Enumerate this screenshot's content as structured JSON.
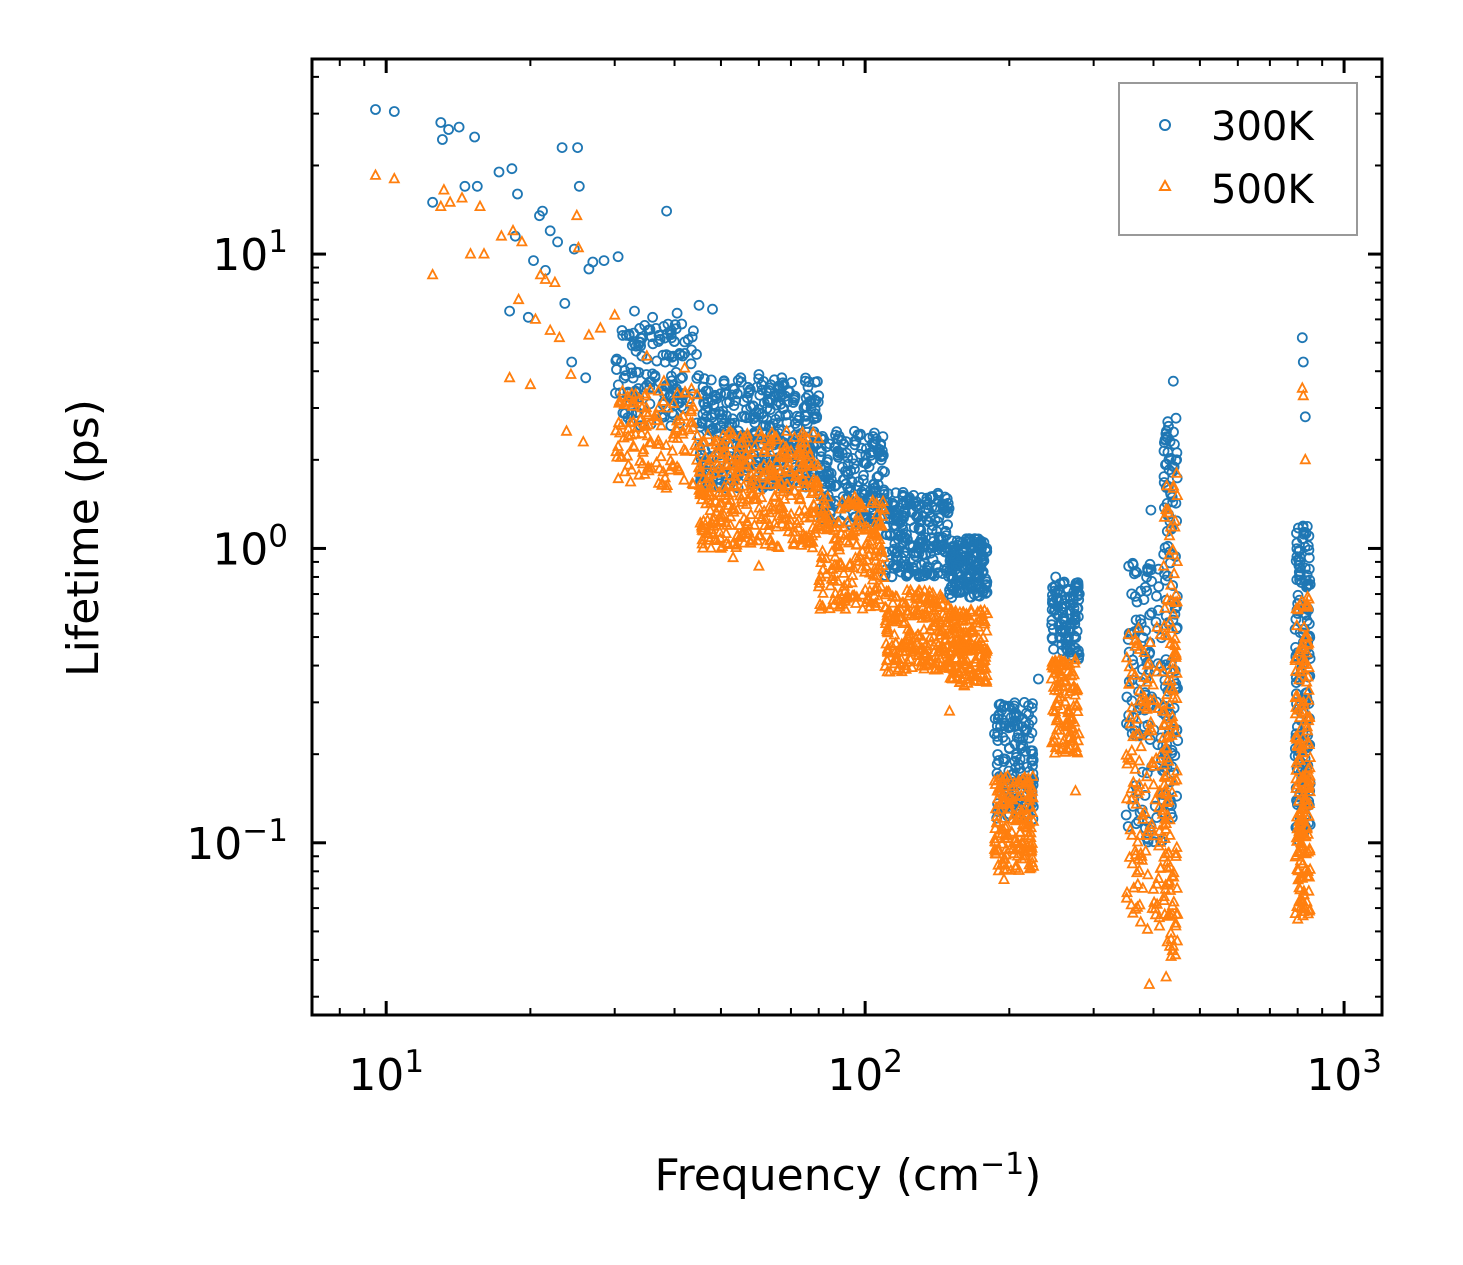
{
  "chart_data": {
    "type": "scatter",
    "title": "",
    "xlabel": "Frequency (cm",
    "xlabel_sup": "−1",
    "xlabel_end": ")",
    "ylabel": "Lifetime (ps)",
    "xscale": "log",
    "yscale": "log",
    "xlim": [
      7.0,
      1200
    ],
    "ylim": [
      0.026,
      46
    ],
    "x_ticks": [
      {
        "value": 10,
        "base": "10",
        "exp": "1"
      },
      {
        "value": 100,
        "base": "10",
        "exp": "2"
      },
      {
        "value": 1000,
        "base": "10",
        "exp": "3"
      }
    ],
    "y_ticks": [
      {
        "value": 0.1,
        "base": "10",
        "exp": "−1"
      },
      {
        "value": 1,
        "base": "10",
        "exp": "0"
      },
      {
        "value": 10,
        "base": "10",
        "exp": "1"
      }
    ],
    "legend_position": "top-right",
    "series": [
      {
        "name": "300K",
        "marker": "circle",
        "color": "#1f77b4",
        "points": [
          [
            9.5,
            31
          ],
          [
            10.4,
            30.5
          ],
          [
            12.5,
            15
          ],
          [
            13,
            28
          ],
          [
            13.1,
            24.5
          ],
          [
            13.5,
            26.5
          ],
          [
            14.2,
            27
          ],
          [
            14.6,
            17
          ],
          [
            15.3,
            25
          ],
          [
            15.5,
            17
          ],
          [
            17.2,
            19
          ],
          [
            18.1,
            6.4
          ],
          [
            18.3,
            19.5
          ],
          [
            18.6,
            11.5
          ],
          [
            18.8,
            16
          ],
          [
            19.8,
            6.1
          ],
          [
            20.3,
            9.5
          ],
          [
            20.9,
            13.5
          ],
          [
            21.2,
            14
          ],
          [
            21.5,
            8.8
          ],
          [
            22,
            12
          ],
          [
            22.8,
            11
          ],
          [
            23.3,
            23
          ],
          [
            23.6,
            6.8
          ],
          [
            24.4,
            4.3
          ],
          [
            24.7,
            10.4
          ],
          [
            25.1,
            23
          ],
          [
            25.3,
            17
          ],
          [
            26.1,
            3.8
          ],
          [
            26.5,
            8.9
          ],
          [
            27,
            9.4
          ],
          [
            28.5,
            9.5
          ],
          [
            30.5,
            9.8
          ],
          [
            31,
            4.3
          ],
          [
            32,
            3.4
          ],
          [
            33,
            6.4
          ],
          [
            35,
            4.4
          ],
          [
            36,
            6.1
          ],
          [
            38.5,
            14
          ],
          [
            39.4,
            5.5
          ],
          [
            40.5,
            6.3
          ],
          [
            42,
            4.6
          ],
          [
            45,
            6.7
          ],
          [
            48,
            6.5
          ],
          [
            55,
            3.8
          ],
          [
            60,
            3.9
          ],
          [
            67,
            3.8
          ],
          [
            75,
            3.7
          ],
          [
            80,
            3.3
          ],
          [
            95,
            2.5
          ],
          [
            105,
            2.3
          ],
          [
            120,
            1.55
          ],
          [
            140,
            1.25
          ],
          [
            160,
            1.05
          ],
          [
            175,
            1.0
          ],
          [
            190,
            0.27
          ],
          [
            200,
            0.21
          ],
          [
            215,
            0.3
          ],
          [
            230,
            0.36
          ],
          [
            250,
            0.8
          ],
          [
            265,
            0.72
          ],
          [
            280,
            0.7
          ],
          [
            355,
            0.87
          ],
          [
            365,
            0.82
          ],
          [
            395,
            1.35
          ],
          [
            410,
            0.85
          ],
          [
            415,
            0.4
          ],
          [
            430,
            2.6
          ],
          [
            440,
            3.7
          ],
          [
            447,
            2.0
          ],
          [
            800,
            0.65
          ],
          [
            810,
            0.9
          ],
          [
            818,
            5.2
          ],
          [
            822,
            4.3
          ],
          [
            830,
            2.8
          ],
          [
            840,
            0.5
          ]
        ],
        "clusters": [
          {
            "fmin": 30,
            "fmax": 45,
            "ymin": 2.6,
            "ymax": 5.8,
            "n": 140
          },
          {
            "fmin": 45,
            "fmax": 80,
            "ymin": 1.6,
            "ymax": 3.8,
            "n": 380
          },
          {
            "fmin": 80,
            "fmax": 110,
            "ymin": 1.2,
            "ymax": 2.5,
            "n": 200
          },
          {
            "fmin": 110,
            "fmax": 150,
            "ymin": 0.8,
            "ymax": 1.55,
            "n": 220
          },
          {
            "fmin": 150,
            "fmax": 180,
            "ymin": 0.68,
            "ymax": 1.08,
            "n": 170
          },
          {
            "fmin": 186,
            "fmax": 225,
            "ymin": 0.12,
            "ymax": 0.3,
            "n": 150
          },
          {
            "fmin": 245,
            "fmax": 280,
            "ymin": 0.42,
            "ymax": 0.78,
            "n": 110
          },
          {
            "fmin": 350,
            "fmax": 420,
            "ymin": 0.1,
            "ymax": 0.9,
            "n": 120
          },
          {
            "fmin": 420,
            "fmax": 450,
            "ymin": 0.12,
            "ymax": 2.8,
            "n": 120
          },
          {
            "fmin": 790,
            "fmax": 850,
            "ymin": 0.1,
            "ymax": 1.2,
            "n": 170
          }
        ]
      },
      {
        "name": "500K",
        "marker": "triangle",
        "color": "#ff7f0e",
        "points": [
          [
            9.5,
            18.5
          ],
          [
            10.4,
            18
          ],
          [
            12.5,
            8.5
          ],
          [
            13,
            14.5
          ],
          [
            13.2,
            16.5
          ],
          [
            13.6,
            15
          ],
          [
            14.4,
            15.5
          ],
          [
            15,
            10
          ],
          [
            15.7,
            14.5
          ],
          [
            16,
            10
          ],
          [
            17.4,
            11.5
          ],
          [
            18.1,
            3.8
          ],
          [
            18.4,
            12
          ],
          [
            18.9,
            7
          ],
          [
            19.2,
            11
          ],
          [
            20,
            3.6
          ],
          [
            20.5,
            6
          ],
          [
            21,
            8.5
          ],
          [
            21.5,
            8.2
          ],
          [
            22,
            5.5
          ],
          [
            22.5,
            8
          ],
          [
            23,
            5.2
          ],
          [
            23.8,
            2.5
          ],
          [
            24.3,
            3.9
          ],
          [
            25,
            13.5
          ],
          [
            25.2,
            10.5
          ],
          [
            25.8,
            2.3
          ],
          [
            26.5,
            5.3
          ],
          [
            28,
            5.6
          ],
          [
            30,
            6.2
          ],
          [
            35,
            4.5
          ],
          [
            38,
            3.7
          ],
          [
            42,
            4.1
          ],
          [
            50,
            1.0
          ],
          [
            53,
            0.93
          ],
          [
            60,
            0.87
          ],
          [
            80,
            0.74
          ],
          [
            85,
            0.85
          ],
          [
            110,
            0.63
          ],
          [
            130,
            0.45
          ],
          [
            150,
            0.28
          ],
          [
            180,
            0.6
          ],
          [
            195,
            0.075
          ],
          [
            210,
            0.16
          ],
          [
            245,
            0.36
          ],
          [
            255,
            0.4
          ],
          [
            270,
            0.38
          ],
          [
            275,
            0.15
          ],
          [
            360,
            0.14
          ],
          [
            380,
            0.07
          ],
          [
            392,
            0.033
          ],
          [
            415,
            0.2
          ],
          [
            425,
            0.035
          ],
          [
            440,
            1.6
          ],
          [
            447,
            1.8
          ],
          [
            800,
            0.055
          ],
          [
            818,
            3.5
          ],
          [
            822,
            3.3
          ],
          [
            830,
            2.0
          ],
          [
            840,
            0.08
          ]
        ],
        "clusters": [
          {
            "fmin": 30,
            "fmax": 45,
            "ymin": 1.6,
            "ymax": 3.5,
            "n": 130
          },
          {
            "fmin": 45,
            "fmax": 80,
            "ymin": 1.0,
            "ymax": 2.5,
            "n": 380
          },
          {
            "fmin": 80,
            "fmax": 110,
            "ymin": 0.62,
            "ymax": 1.5,
            "n": 200
          },
          {
            "fmin": 110,
            "fmax": 150,
            "ymin": 0.38,
            "ymax": 0.72,
            "n": 220
          },
          {
            "fmin": 150,
            "fmax": 180,
            "ymin": 0.34,
            "ymax": 0.62,
            "n": 170
          },
          {
            "fmin": 186,
            "fmax": 225,
            "ymin": 0.08,
            "ymax": 0.17,
            "n": 150
          },
          {
            "fmin": 245,
            "fmax": 280,
            "ymin": 0.2,
            "ymax": 0.42,
            "n": 110
          },
          {
            "fmin": 350,
            "fmax": 420,
            "ymin": 0.05,
            "ymax": 0.55,
            "n": 130
          },
          {
            "fmin": 420,
            "fmax": 450,
            "ymin": 0.04,
            "ymax": 1.7,
            "n": 130
          },
          {
            "fmin": 790,
            "fmax": 850,
            "ymin": 0.055,
            "ymax": 0.7,
            "n": 180
          }
        ]
      }
    ]
  }
}
